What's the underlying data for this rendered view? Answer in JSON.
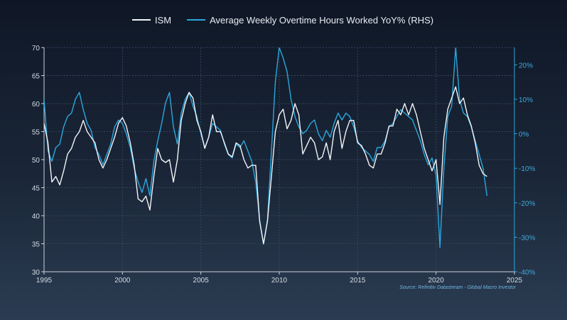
{
  "legend": {
    "ism_label": "ISM",
    "overtime_label": "Average Weekly Overtime Hours Worked YoY% (RHS)"
  },
  "source": "Source: Refinitiv Datastream - Global Macro Investor",
  "colors": {
    "ism": "#f2f4f7",
    "overtime": "#2aa7de",
    "grid": "#35465c",
    "right_axis": "#2aa7de",
    "left_axis": "#c9d1db"
  },
  "chart_data": {
    "type": "line",
    "title": "",
    "x_range": [
      1995,
      2025
    ],
    "x_ticks": [
      1995,
      2000,
      2005,
      2010,
      2015,
      2020,
      2025
    ],
    "y_left": {
      "range": [
        30,
        70
      ],
      "ticks": [
        30,
        35,
        40,
        45,
        50,
        55,
        60,
        65,
        70
      ]
    },
    "y_right": {
      "range": [
        -40,
        25
      ],
      "ticks": [
        -40,
        -30,
        -20,
        -10,
        0,
        10,
        20
      ],
      "format": "percent"
    },
    "series": [
      {
        "name": "ISM",
        "axis": "left",
        "points": [
          [
            1995.0,
            56.5
          ],
          [
            1995.25,
            53
          ],
          [
            1995.5,
            46
          ],
          [
            1995.75,
            47
          ],
          [
            1996.0,
            45.5
          ],
          [
            1996.25,
            48
          ],
          [
            1996.5,
            51
          ],
          [
            1996.75,
            52
          ],
          [
            1997.0,
            54
          ],
          [
            1997.25,
            55
          ],
          [
            1997.5,
            57
          ],
          [
            1997.75,
            55
          ],
          [
            1998.0,
            54
          ],
          [
            1998.25,
            53
          ],
          [
            1998.5,
            50
          ],
          [
            1998.75,
            48.5
          ],
          [
            1999.0,
            50
          ],
          [
            1999.25,
            52
          ],
          [
            1999.5,
            54
          ],
          [
            1999.75,
            56.5
          ],
          [
            2000.0,
            57.5
          ],
          [
            2000.25,
            56
          ],
          [
            2000.5,
            53
          ],
          [
            2000.75,
            49
          ],
          [
            2001.0,
            43
          ],
          [
            2001.25,
            42.5
          ],
          [
            2001.5,
            43.5
          ],
          [
            2001.75,
            41
          ],
          [
            2002.0,
            47
          ],
          [
            2002.25,
            52
          ],
          [
            2002.5,
            50
          ],
          [
            2002.75,
            49.5
          ],
          [
            2003.0,
            50
          ],
          [
            2003.25,
            46
          ],
          [
            2003.5,
            50
          ],
          [
            2003.75,
            57
          ],
          [
            2004.0,
            60
          ],
          [
            2004.25,
            62
          ],
          [
            2004.5,
            61
          ],
          [
            2004.75,
            57
          ],
          [
            2005.0,
            55
          ],
          [
            2005.25,
            52
          ],
          [
            2005.5,
            54
          ],
          [
            2005.75,
            58
          ],
          [
            2006.0,
            55
          ],
          [
            2006.25,
            55
          ],
          [
            2006.5,
            53
          ],
          [
            2006.75,
            51
          ],
          [
            2007.0,
            50.5
          ],
          [
            2007.25,
            53
          ],
          [
            2007.5,
            52.5
          ],
          [
            2007.75,
            50
          ],
          [
            2008.0,
            48.5
          ],
          [
            2008.25,
            49
          ],
          [
            2008.5,
            49
          ],
          [
            2008.75,
            39
          ],
          [
            2009.0,
            35
          ],
          [
            2009.25,
            39
          ],
          [
            2009.5,
            47
          ],
          [
            2009.75,
            55
          ],
          [
            2010.0,
            58
          ],
          [
            2010.25,
            59
          ],
          [
            2010.5,
            55.5
          ],
          [
            2010.75,
            57
          ],
          [
            2011.0,
            60
          ],
          [
            2011.25,
            58
          ],
          [
            2011.5,
            51
          ],
          [
            2011.75,
            52.5
          ],
          [
            2012.0,
            54
          ],
          [
            2012.25,
            53
          ],
          [
            2012.5,
            50
          ],
          [
            2012.75,
            50.5
          ],
          [
            2013.0,
            53
          ],
          [
            2013.25,
            50
          ],
          [
            2013.5,
            55
          ],
          [
            2013.75,
            57
          ],
          [
            2014.0,
            52
          ],
          [
            2014.25,
            55
          ],
          [
            2014.5,
            57
          ],
          [
            2014.75,
            57
          ],
          [
            2015.0,
            53
          ],
          [
            2015.25,
            52.5
          ],
          [
            2015.5,
            51
          ],
          [
            2015.75,
            49
          ],
          [
            2016.0,
            48.5
          ],
          [
            2016.25,
            51
          ],
          [
            2016.5,
            51
          ],
          [
            2016.75,
            53
          ],
          [
            2017.0,
            56
          ],
          [
            2017.25,
            56
          ],
          [
            2017.5,
            59
          ],
          [
            2017.75,
            58
          ],
          [
            2018.0,
            60
          ],
          [
            2018.25,
            58
          ],
          [
            2018.5,
            60
          ],
          [
            2018.75,
            58
          ],
          [
            2019.0,
            55
          ],
          [
            2019.25,
            52
          ],
          [
            2019.5,
            50
          ],
          [
            2019.75,
            48
          ],
          [
            2020.0,
            50
          ],
          [
            2020.25,
            42
          ],
          [
            2020.5,
            54
          ],
          [
            2020.75,
            59
          ],
          [
            2021.0,
            61
          ],
          [
            2021.25,
            63
          ],
          [
            2021.5,
            60
          ],
          [
            2021.75,
            61
          ],
          [
            2022.0,
            58
          ],
          [
            2022.25,
            56
          ],
          [
            2022.5,
            53
          ],
          [
            2022.75,
            49
          ],
          [
            2023.0,
            47.5
          ],
          [
            2023.25,
            47
          ]
        ]
      },
      {
        "name": "Average Weekly Overtime Hours Worked YoY% (RHS)",
        "axis": "right",
        "points": [
          [
            1995.0,
            10
          ],
          [
            1995.25,
            -5
          ],
          [
            1995.5,
            -8
          ],
          [
            1995.75,
            -4
          ],
          [
            1996.0,
            -3
          ],
          [
            1996.25,
            2
          ],
          [
            1996.5,
            5
          ],
          [
            1996.75,
            6
          ],
          [
            1997.0,
            10
          ],
          [
            1997.25,
            12
          ],
          [
            1997.5,
            7
          ],
          [
            1997.75,
            3
          ],
          [
            1998.0,
            1
          ],
          [
            1998.25,
            -4
          ],
          [
            1998.5,
            -6
          ],
          [
            1998.75,
            -9
          ],
          [
            1999.0,
            -6
          ],
          [
            1999.25,
            -3
          ],
          [
            1999.5,
            2
          ],
          [
            1999.75,
            4
          ],
          [
            2000.0,
            3
          ],
          [
            2000.25,
            0
          ],
          [
            2000.5,
            -4
          ],
          [
            2000.75,
            -10
          ],
          [
            2001.0,
            -14
          ],
          [
            2001.25,
            -17
          ],
          [
            2001.5,
            -13
          ],
          [
            2001.75,
            -18
          ],
          [
            2002.0,
            -8
          ],
          [
            2002.25,
            -2
          ],
          [
            2002.5,
            3
          ],
          [
            2002.75,
            9
          ],
          [
            2003.0,
            12
          ],
          [
            2003.25,
            2
          ],
          [
            2003.5,
            -3
          ],
          [
            2003.75,
            6
          ],
          [
            2004.0,
            10
          ],
          [
            2004.25,
            12
          ],
          [
            2004.5,
            8
          ],
          [
            2004.75,
            5
          ],
          [
            2005.0,
            0
          ],
          [
            2005.25,
            -4
          ],
          [
            2005.5,
            -1
          ],
          [
            2005.75,
            3
          ],
          [
            2006.0,
            2
          ],
          [
            2006.25,
            1
          ],
          [
            2006.5,
            -3
          ],
          [
            2006.75,
            -6
          ],
          [
            2007.0,
            -7
          ],
          [
            2007.25,
            -3
          ],
          [
            2007.5,
            -4
          ],
          [
            2007.75,
            -2
          ],
          [
            2008.0,
            -5
          ],
          [
            2008.25,
            -8
          ],
          [
            2008.5,
            -14
          ],
          [
            2008.75,
            -25
          ],
          [
            2009.0,
            -32
          ],
          [
            2009.25,
            -25
          ],
          [
            2009.5,
            -5
          ],
          [
            2009.75,
            15
          ],
          [
            2010.0,
            25
          ],
          [
            2010.25,
            22
          ],
          [
            2010.5,
            18
          ],
          [
            2010.75,
            10
          ],
          [
            2011.0,
            5
          ],
          [
            2011.25,
            2
          ],
          [
            2011.5,
            0
          ],
          [
            2011.75,
            1
          ],
          [
            2012.0,
            3
          ],
          [
            2012.25,
            4
          ],
          [
            2012.5,
            0
          ],
          [
            2012.75,
            -2
          ],
          [
            2013.0,
            1
          ],
          [
            2013.25,
            -1
          ],
          [
            2013.5,
            3
          ],
          [
            2013.75,
            6
          ],
          [
            2014.0,
            4
          ],
          [
            2014.25,
            6
          ],
          [
            2014.5,
            5
          ],
          [
            2014.75,
            2
          ],
          [
            2015.0,
            -2
          ],
          [
            2015.25,
            -4
          ],
          [
            2015.5,
            -5
          ],
          [
            2015.75,
            -6
          ],
          [
            2016.0,
            -8
          ],
          [
            2016.25,
            -4
          ],
          [
            2016.5,
            -4
          ],
          [
            2016.75,
            -2
          ],
          [
            2017.0,
            2
          ],
          [
            2017.25,
            3
          ],
          [
            2017.5,
            5
          ],
          [
            2017.75,
            7
          ],
          [
            2018.0,
            6
          ],
          [
            2018.25,
            5
          ],
          [
            2018.5,
            4
          ],
          [
            2018.75,
            1
          ],
          [
            2019.0,
            -2
          ],
          [
            2019.25,
            -6
          ],
          [
            2019.5,
            -9
          ],
          [
            2019.75,
            -7
          ],
          [
            2020.0,
            -12
          ],
          [
            2020.25,
            -33
          ],
          [
            2020.5,
            -10
          ],
          [
            2020.75,
            5
          ],
          [
            2021.0,
            8
          ],
          [
            2021.25,
            25
          ],
          [
            2021.5,
            10
          ],
          [
            2021.75,
            6
          ],
          [
            2022.0,
            5
          ],
          [
            2022.25,
            2
          ],
          [
            2022.5,
            -2
          ],
          [
            2022.75,
            -6
          ],
          [
            2023.0,
            -10
          ],
          [
            2023.25,
            -18
          ]
        ]
      }
    ]
  }
}
